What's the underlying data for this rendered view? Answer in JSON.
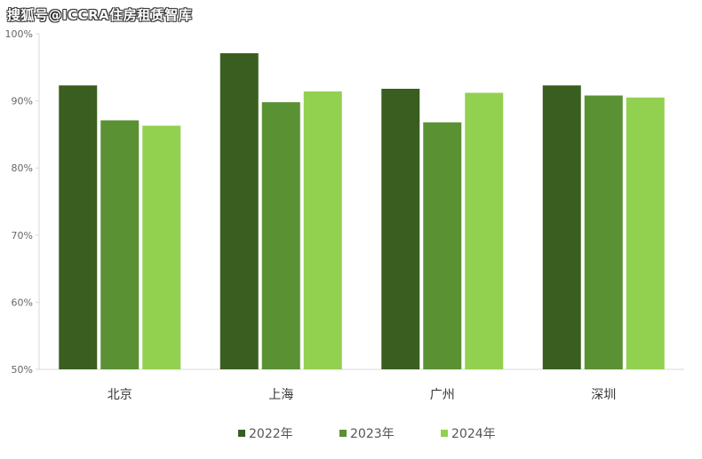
{
  "watermark": "搜狐号@ICCRA住房租赁智库",
  "chart_data": {
    "type": "bar",
    "categories": [
      "北京",
      "上海",
      "广州",
      "深圳"
    ],
    "series": [
      {
        "name": "2022年",
        "color": "#3a5e20",
        "values": [
          92.3,
          97.1,
          91.8,
          92.3
        ]
      },
      {
        "name": "2023年",
        "color": "#5a9133",
        "values": [
          87.1,
          89.8,
          86.8,
          90.8
        ]
      },
      {
        "name": "2024年",
        "color": "#92d050",
        "values": [
          86.3,
          91.4,
          91.2,
          90.5
        ]
      }
    ],
    "ylim": [
      50,
      100
    ],
    "yticks": [
      "50%",
      "60%",
      "70%",
      "80%",
      "90%",
      "100%"
    ],
    "ytick_values": [
      50,
      60,
      70,
      80,
      90,
      100
    ],
    "grid": false,
    "legend_position": "bottom",
    "title": "",
    "xlabel": "",
    "ylabel": ""
  }
}
